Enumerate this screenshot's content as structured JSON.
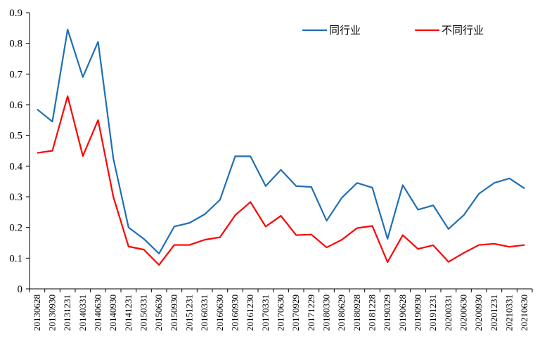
{
  "chart_data": {
    "type": "line",
    "title": "",
    "xlabel": "",
    "ylabel": "",
    "ylim": [
      0,
      0.9
    ],
    "yticks": [
      "0",
      "0.1",
      "0.2",
      "0.3",
      "0.4",
      "0.5",
      "0.6",
      "0.7",
      "0.8",
      "0.9"
    ],
    "grid": false,
    "legend_position": "top-right",
    "categories": [
      "20130628",
      "20130930",
      "20131231",
      "20140331",
      "20140630",
      "20140930",
      "20141231",
      "20150331",
      "20150630",
      "20150930",
      "20151231",
      "20160331",
      "20160630",
      "20160930",
      "20161230",
      "20170331",
      "20170630",
      "20170929",
      "20171229",
      "20180330",
      "20180629",
      "20180928",
      "20181228",
      "20190329",
      "20190628",
      "20190930",
      "20191231",
      "20200331",
      "20200630",
      "20200930",
      "20201231",
      "20210331",
      "20210630"
    ],
    "series": [
      {
        "name": "同行业",
        "color": "#1f6fb4",
        "values": [
          0.585,
          0.545,
          0.845,
          0.69,
          0.805,
          0.425,
          0.2,
          0.163,
          0.115,
          0.203,
          0.215,
          0.243,
          0.29,
          0.432,
          0.432,
          0.335,
          0.388,
          0.335,
          0.332,
          0.222,
          0.297,
          0.345,
          0.33,
          0.163,
          0.338,
          0.258,
          0.272,
          0.195,
          0.24,
          0.31,
          0.345,
          0.36,
          0.327
        ]
      },
      {
        "name": "不同行业",
        "color": "#ff0000",
        "values": [
          0.443,
          0.45,
          0.628,
          0.433,
          0.55,
          0.3,
          0.138,
          0.128,
          0.078,
          0.143,
          0.143,
          0.16,
          0.168,
          0.24,
          0.283,
          0.203,
          0.238,
          0.175,
          0.177,
          0.135,
          0.16,
          0.198,
          0.205,
          0.087,
          0.175,
          0.13,
          0.142,
          0.088,
          0.117,
          0.143,
          0.147,
          0.137,
          0.143
        ]
      }
    ]
  }
}
